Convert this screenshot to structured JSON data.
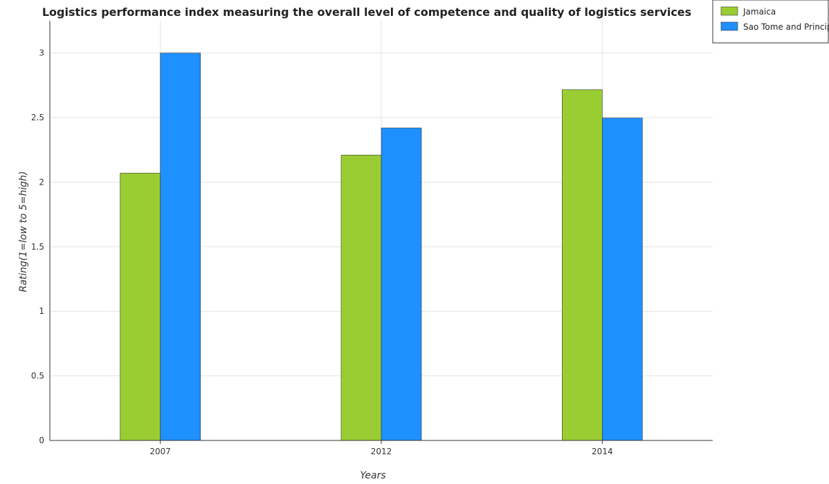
{
  "chart_data": {
    "type": "bar",
    "title": "Logistics performance index measuring the overall level of competence and quality of logistics services",
    "xlabel": "Years",
    "ylabel": "Rating(1=low to 5=high)",
    "categories": [
      "2007",
      "2012",
      "2014"
    ],
    "series": [
      {
        "name": "Jamaica",
        "values": [
          2.07,
          2.21,
          2.716
        ],
        "color": "#9acd32"
      },
      {
        "name": "Sao Tome and Principe",
        "values": [
          3.0,
          2.42,
          2.497
        ],
        "color": "#1e90ff"
      }
    ],
    "ylim": [
      0,
      3.25
    ],
    "yticks": [
      "0",
      "0.5",
      "1",
      "1.5",
      "2",
      "2.5",
      "3"
    ],
    "grid": true,
    "legend_position": "top-right"
  }
}
